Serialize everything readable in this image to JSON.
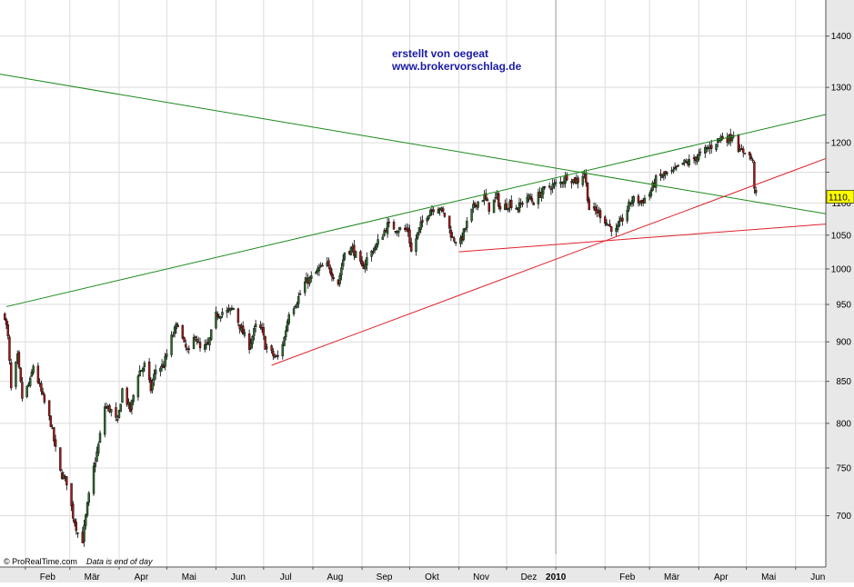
{
  "watermark": {
    "line1": "erstellt von oegeat",
    "line2": "www.brokervorschlag.de",
    "color": "#1a1aa6"
  },
  "footer": {
    "copyright": "© ProRealTime.com",
    "note": "Data is end of day"
  },
  "last_price_label": "1110,",
  "colors": {
    "plot_bg": "#ffffff",
    "grid": "#dcdcdc",
    "axis_bg": "#e8e8e8",
    "axis_text": "#000000",
    "up_candle": "#2e6b2e",
    "down_candle": "#a01818",
    "wick": "#000000",
    "trend_green": "#1a8a1a",
    "trend_red": "#e0202a",
    "price_label_bg": "#ffff00",
    "year_separator": "#a0a0a0"
  },
  "chart_data": {
    "type": "candlestick",
    "title": "",
    "xlabel": "",
    "ylabel": "",
    "ylim": [
      650,
      1475
    ],
    "xlim": [
      "2009-01-16",
      "2010-06-20"
    ],
    "grid": true,
    "y_ticks": [
      700,
      750,
      800,
      850,
      900,
      950,
      1000,
      1050,
      1100,
      1150,
      1200,
      1300,
      1400
    ],
    "y_tick_labels": [
      "700",
      "750",
      "800",
      "850",
      "900",
      "950",
      "1000",
      "1050",
      "1100",
      "",
      "1200",
      "1300",
      "1400"
    ],
    "x_ticks": [
      {
        "label": "Feb",
        "date": "2009-02-01"
      },
      {
        "label": "Mär",
        "date": "2009-03-01"
      },
      {
        "label": "Apr",
        "date": "2009-04-01"
      },
      {
        "label": "Mai",
        "date": "2009-05-01"
      },
      {
        "label": "Jun",
        "date": "2009-06-01"
      },
      {
        "label": "Jul",
        "date": "2009-07-01"
      },
      {
        "label": "Aug",
        "date": "2009-08-01"
      },
      {
        "label": "Sep",
        "date": "2009-09-01"
      },
      {
        "label": "Okt",
        "date": "2009-10-01"
      },
      {
        "label": "Nov",
        "date": "2009-11-01"
      },
      {
        "label": "Dez",
        "date": "2009-12-01"
      },
      {
        "label": "2010",
        "date": "2010-01-01",
        "bold": true
      },
      {
        "label": "Feb",
        "date": "2010-02-01"
      },
      {
        "label": "Mär",
        "date": "2010-03-01"
      },
      {
        "label": "Apr",
        "date": "2010-04-01"
      },
      {
        "label": "Mai",
        "date": "2010-05-01"
      },
      {
        "label": "Jun",
        "date": "2010-06-01"
      }
    ],
    "price_path": [
      [
        "2009-01-19",
        935
      ],
      [
        "2009-01-21",
        905
      ],
      [
        "2009-01-23",
        840
      ],
      [
        "2009-01-27",
        880
      ],
      [
        "2009-01-30",
        830
      ],
      [
        "2009-02-04",
        850
      ],
      [
        "2009-02-06",
        870
      ],
      [
        "2009-02-09",
        850
      ],
      [
        "2009-02-12",
        830
      ],
      [
        "2009-02-17",
        800
      ],
      [
        "2009-02-20",
        770
      ],
      [
        "2009-02-23",
        745
      ],
      [
        "2009-02-27",
        735
      ],
      [
        "2009-03-03",
        700
      ],
      [
        "2009-03-06",
        683
      ],
      [
        "2009-03-09",
        676
      ],
      [
        "2009-03-12",
        710
      ],
      [
        "2009-03-16",
        750
      ],
      [
        "2009-03-19",
        775
      ],
      [
        "2009-03-23",
        820
      ],
      [
        "2009-03-27",
        815
      ],
      [
        "2009-03-31",
        800
      ],
      [
        "2009-04-03",
        840
      ],
      [
        "2009-04-08",
        815
      ],
      [
        "2009-04-13",
        860
      ],
      [
        "2009-04-17",
        870
      ],
      [
        "2009-04-21",
        840
      ],
      [
        "2009-04-24",
        865
      ],
      [
        "2009-04-29",
        870
      ],
      [
        "2009-05-04",
        905
      ],
      [
        "2009-05-08",
        925
      ],
      [
        "2009-05-12",
        895
      ],
      [
        "2009-05-15",
        885
      ],
      [
        "2009-05-19",
        910
      ],
      [
        "2009-05-22",
        890
      ],
      [
        "2009-05-27",
        895
      ],
      [
        "2009-06-01",
        935
      ],
      [
        "2009-06-05",
        940
      ],
      [
        "2009-06-09",
        940
      ],
      [
        "2009-06-12",
        945
      ],
      [
        "2009-06-17",
        915
      ],
      [
        "2009-06-22",
        895
      ],
      [
        "2009-06-26",
        920
      ],
      [
        "2009-06-30",
        915
      ],
      [
        "2009-07-02",
        895
      ],
      [
        "2009-07-08",
        880
      ],
      [
        "2009-07-10",
        880
      ],
      [
        "2009-07-14",
        905
      ],
      [
        "2009-07-17",
        940
      ],
      [
        "2009-07-22",
        955
      ],
      [
        "2009-07-27",
        980
      ],
      [
        "2009-07-31",
        987
      ],
      [
        "2009-08-05",
        1000
      ],
      [
        "2009-08-10",
        1005
      ],
      [
        "2009-08-17",
        980
      ],
      [
        "2009-08-21",
        1025
      ],
      [
        "2009-08-26",
        1030
      ],
      [
        "2009-09-01",
        1000
      ],
      [
        "2009-09-04",
        1015
      ],
      [
        "2009-09-10",
        1035
      ],
      [
        "2009-09-17",
        1065
      ],
      [
        "2009-09-23",
        1060
      ],
      [
        "2009-09-30",
        1057
      ],
      [
        "2009-10-02",
        1025
      ],
      [
        "2009-10-08",
        1065
      ],
      [
        "2009-10-14",
        1090
      ],
      [
        "2009-10-19",
        1095
      ],
      [
        "2009-10-23",
        1080
      ],
      [
        "2009-10-28",
        1045
      ],
      [
        "2009-11-02",
        1040
      ],
      [
        "2009-11-06",
        1068
      ],
      [
        "2009-11-11",
        1098
      ],
      [
        "2009-11-17",
        1110
      ],
      [
        "2009-11-20",
        1092
      ],
      [
        "2009-11-25",
        1110
      ],
      [
        "2009-11-27",
        1090
      ],
      [
        "2009-12-03",
        1100
      ],
      [
        "2009-12-08",
        1092
      ],
      [
        "2009-12-14",
        1110
      ],
      [
        "2009-12-18",
        1102
      ],
      [
        "2009-12-23",
        1118
      ],
      [
        "2009-12-28",
        1126
      ],
      [
        "2010-01-04",
        1133
      ],
      [
        "2010-01-08",
        1144
      ],
      [
        "2010-01-12",
        1137
      ],
      [
        "2010-01-15",
        1136
      ],
      [
        "2010-01-19",
        1150
      ],
      [
        "2010-01-22",
        1091
      ],
      [
        "2010-01-28",
        1085
      ],
      [
        "2010-02-04",
        1063
      ],
      [
        "2010-02-08",
        1056
      ],
      [
        "2010-02-12",
        1075
      ],
      [
        "2010-02-18",
        1106
      ],
      [
        "2010-02-24",
        1102
      ],
      [
        "2010-03-01",
        1115
      ],
      [
        "2010-03-05",
        1138
      ],
      [
        "2010-03-10",
        1145
      ],
      [
        "2010-03-16",
        1150
      ],
      [
        "2010-03-22",
        1165
      ],
      [
        "2010-03-26",
        1167
      ],
      [
        "2010-04-01",
        1178
      ],
      [
        "2010-04-06",
        1189
      ],
      [
        "2010-04-09",
        1194
      ],
      [
        "2010-04-15",
        1210
      ],
      [
        "2010-04-20",
        1207
      ],
      [
        "2010-04-23",
        1217
      ],
      [
        "2010-04-27",
        1183
      ],
      [
        "2010-04-30",
        1187
      ],
      [
        "2010-05-04",
        1173
      ],
      [
        "2010-05-05",
        1165
      ],
      [
        "2010-05-06",
        1128
      ],
      [
        "2010-05-07",
        1110
      ]
    ],
    "trendlines": [
      {
        "color": "green",
        "points": [
          [
            "2009-01-16",
            1325
          ],
          [
            "2010-06-20",
            1083
          ]
        ]
      },
      {
        "color": "green",
        "points": [
          [
            "2009-01-20",
            947
          ],
          [
            "2010-06-20",
            1250
          ]
        ]
      },
      {
        "color": "red",
        "points": [
          [
            "2009-07-06",
            870
          ],
          [
            "2010-06-20",
            1173
          ]
        ]
      },
      {
        "color": "red",
        "points": [
          [
            "2009-11-01",
            1025
          ],
          [
            "2010-06-20",
            1067
          ]
        ]
      }
    ],
    "last_price": 1110
  }
}
